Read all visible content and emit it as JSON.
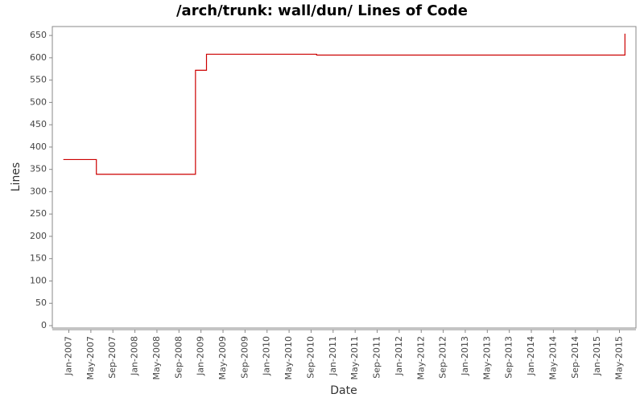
{
  "chart_data": {
    "type": "step-line",
    "title": "/arch/trunk: wall/dun/ Lines of Code",
    "x_label": "Date",
    "y_label": "Lines",
    "x": [
      "2006-12",
      "2007-06",
      "2008-12",
      "2009-02",
      "2010-10",
      "2015-06"
    ],
    "series": [
      {
        "name": "Lines",
        "color": "#cc0000",
        "values": [
          372,
          339,
          572,
          608,
          606,
          654
        ]
      }
    ],
    "xlim": [
      "2006-10",
      "2015-08"
    ],
    "xticks": [
      {
        "value": "2007-01",
        "label": "Jan-2007"
      },
      {
        "value": "2007-05",
        "label": "May-2007"
      },
      {
        "value": "2007-09",
        "label": "Sep-2007"
      },
      {
        "value": "2008-01",
        "label": "Jan-2008"
      },
      {
        "value": "2008-05",
        "label": "May-2008"
      },
      {
        "value": "2008-09",
        "label": "Sep-2008"
      },
      {
        "value": "2009-01",
        "label": "Jan-2009"
      },
      {
        "value": "2009-05",
        "label": "May-2009"
      },
      {
        "value": "2009-09",
        "label": "Sep-2009"
      },
      {
        "value": "2010-01",
        "label": "Jan-2010"
      },
      {
        "value": "2010-05",
        "label": "May-2010"
      },
      {
        "value": "2010-09",
        "label": "Sep-2010"
      },
      {
        "value": "2011-01",
        "label": "Jan-2011"
      },
      {
        "value": "2011-05",
        "label": "May-2011"
      },
      {
        "value": "2011-09",
        "label": "Sep-2011"
      },
      {
        "value": "2012-01",
        "label": "Jan-2012"
      },
      {
        "value": "2012-05",
        "label": "May-2012"
      },
      {
        "value": "2012-09",
        "label": "Sep-2012"
      },
      {
        "value": "2013-01",
        "label": "Jan-2013"
      },
      {
        "value": "2013-05",
        "label": "May-2013"
      },
      {
        "value": "2013-09",
        "label": "Sep-2013"
      },
      {
        "value": "2014-01",
        "label": "Jan-2014"
      },
      {
        "value": "2014-05",
        "label": "May-2014"
      },
      {
        "value": "2014-09",
        "label": "Sep-2014"
      },
      {
        "value": "2015-01",
        "label": "Jan-2015"
      },
      {
        "value": "2015-05",
        "label": "May-2015"
      }
    ],
    "ylim": [
      0,
      670
    ],
    "yticks": [
      0,
      50,
      100,
      150,
      200,
      250,
      300,
      350,
      400,
      450,
      500,
      550,
      600,
      650
    ],
    "grid": false
  }
}
